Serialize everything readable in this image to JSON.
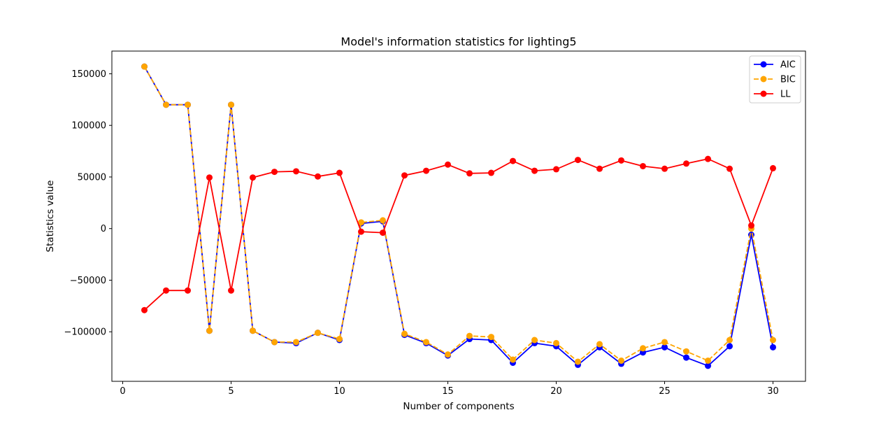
{
  "chart_data": {
    "type": "line",
    "title": "Model's information statistics for lighting5",
    "xlabel": "Number of components",
    "ylabel": "Statistics value",
    "xlim": [
      -0.5,
      31.5
    ],
    "ylim": [
      -148000,
      172000
    ],
    "xticks": [
      0,
      5,
      10,
      15,
      20,
      25,
      30
    ],
    "yticks": [
      -100000,
      -50000,
      0,
      50000,
      100000,
      150000
    ],
    "ytick_labels": [
      "−100000",
      "−50000",
      "0",
      "50000",
      "100000",
      "150000"
    ],
    "grid": false,
    "legend_position": "top-right",
    "x": [
      1,
      2,
      3,
      4,
      5,
      6,
      7,
      8,
      9,
      10,
      11,
      12,
      13,
      14,
      15,
      16,
      17,
      18,
      19,
      20,
      21,
      22,
      23,
      24,
      25,
      26,
      27,
      28,
      29,
      30
    ],
    "series": [
      {
        "name": "AIC",
        "color": "#0000ff",
        "linestyle": "solid",
        "values": [
          157000,
          120000,
          120000,
          -99000,
          120000,
          -99000,
          -110000,
          -111000,
          -101000,
          -108000,
          5000,
          7000,
          -103000,
          -111000,
          -123000,
          -107000,
          -108000,
          -130000,
          -111000,
          -114000,
          -132000,
          -115000,
          -131000,
          -120000,
          -115000,
          -125000,
          -133000,
          -114000,
          -6000,
          -115000
        ]
      },
      {
        "name": "BIC",
        "color": "#ffa500",
        "linestyle": "dashed",
        "values": [
          157000,
          120000,
          120000,
          -99000,
          120000,
          -99000,
          -110000,
          -110000,
          -101000,
          -107000,
          6000,
          8000,
          -102000,
          -110000,
          -122000,
          -104000,
          -105000,
          -127000,
          -108000,
          -111000,
          -129000,
          -112000,
          -128000,
          -116000,
          -110000,
          -119000,
          -128000,
          -108000,
          0,
          -108000
        ]
      },
      {
        "name": "LL",
        "color": "#ff0000",
        "linestyle": "solid",
        "values": [
          -79000,
          -60000,
          -60000,
          49500,
          -60000,
          49500,
          55000,
          55500,
          50500,
          54000,
          -3000,
          -4000,
          51500,
          56000,
          62000,
          53500,
          54000,
          65500,
          56000,
          57500,
          66500,
          58000,
          66000,
          60500,
          58000,
          63000,
          67500,
          58000,
          3000,
          58500
        ]
      }
    ]
  }
}
